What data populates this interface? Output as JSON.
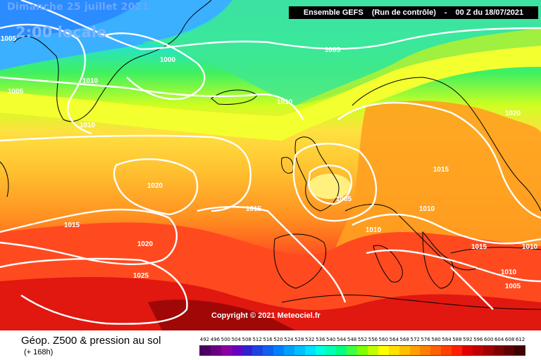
{
  "header": {
    "date_text": "Dimanche 25 juillet 2021",
    "time_text": "2:00 locale",
    "run_model": "Ensemble GEFS",
    "run_type": "(Run de contrôle)",
    "run_time": "00 Z du 18/07/2021"
  },
  "copyright": "Copyright © 2021 Meteociel.fr",
  "footer": {
    "product": "Géop. Z500 & pression au sol",
    "lead": "(+ 168h)"
  },
  "scale": {
    "labels": [
      "492",
      "496",
      "500",
      "504",
      "508",
      "512",
      "516",
      "520",
      "524",
      "528",
      "532",
      "536",
      "540",
      "544",
      "548",
      "552",
      "556",
      "560",
      "564",
      "568",
      "572",
      "576",
      "580",
      "584",
      "588",
      "592",
      "596",
      "600",
      "604",
      "608",
      "612"
    ],
    "colors": [
      "#4a0060",
      "#6a0080",
      "#8a00a0",
      "#6a00c0",
      "#3020d0",
      "#2040e0",
      "#1060f0",
      "#0080ff",
      "#00a0ff",
      "#00c0ff",
      "#00e0ff",
      "#00ffe0",
      "#00ffb0",
      "#00ff80",
      "#40ff40",
      "#80ff00",
      "#c0ff00",
      "#ffff00",
      "#ffe000",
      "#ffc000",
      "#ffa000",
      "#ff8000",
      "#ff6000",
      "#ff4000",
      "#ff2000",
      "#e00000",
      "#c00000",
      "#a00000",
      "#800000",
      "#600000",
      "#400000"
    ]
  },
  "isobars": [
    {
      "label": "1005",
      "name": "iso-1005-nw"
    },
    {
      "label": "1000",
      "name": "iso-1000"
    },
    {
      "label": "1005",
      "name": "iso-1005-north"
    },
    {
      "label": "1010",
      "name": "iso-1010-greenland"
    },
    {
      "label": "1005",
      "name": "iso-1005-west"
    },
    {
      "label": "1010",
      "name": "iso-1010-iceland"
    },
    {
      "label": "1010",
      "name": "iso-1010-labrador"
    },
    {
      "label": "1020",
      "name": "iso-1020-scandinavia"
    },
    {
      "label": "1015",
      "name": "iso-1015-baltic"
    },
    {
      "label": "1020",
      "name": "iso-1020-atlantic"
    },
    {
      "label": "1005",
      "name": "iso-1005-uk-low"
    },
    {
      "label": "1015",
      "name": "iso-1015-biscay"
    },
    {
      "label": "1010",
      "name": "iso-1010-central-europe"
    },
    {
      "label": "1015",
      "name": "iso-1015-atlantic-west"
    },
    {
      "label": "1010",
      "name": "iso-1010-france"
    },
    {
      "label": "1020",
      "name": "iso-1020-azores"
    },
    {
      "label": "1015",
      "name": "iso-1015-balkans"
    },
    {
      "label": "1010",
      "name": "iso-1010-east"
    },
    {
      "label": "1025",
      "name": "iso-1025-high"
    },
    {
      "label": "1010",
      "name": "iso-1010-turkey"
    },
    {
      "label": "1005",
      "name": "iso-1005-se"
    }
  ]
}
